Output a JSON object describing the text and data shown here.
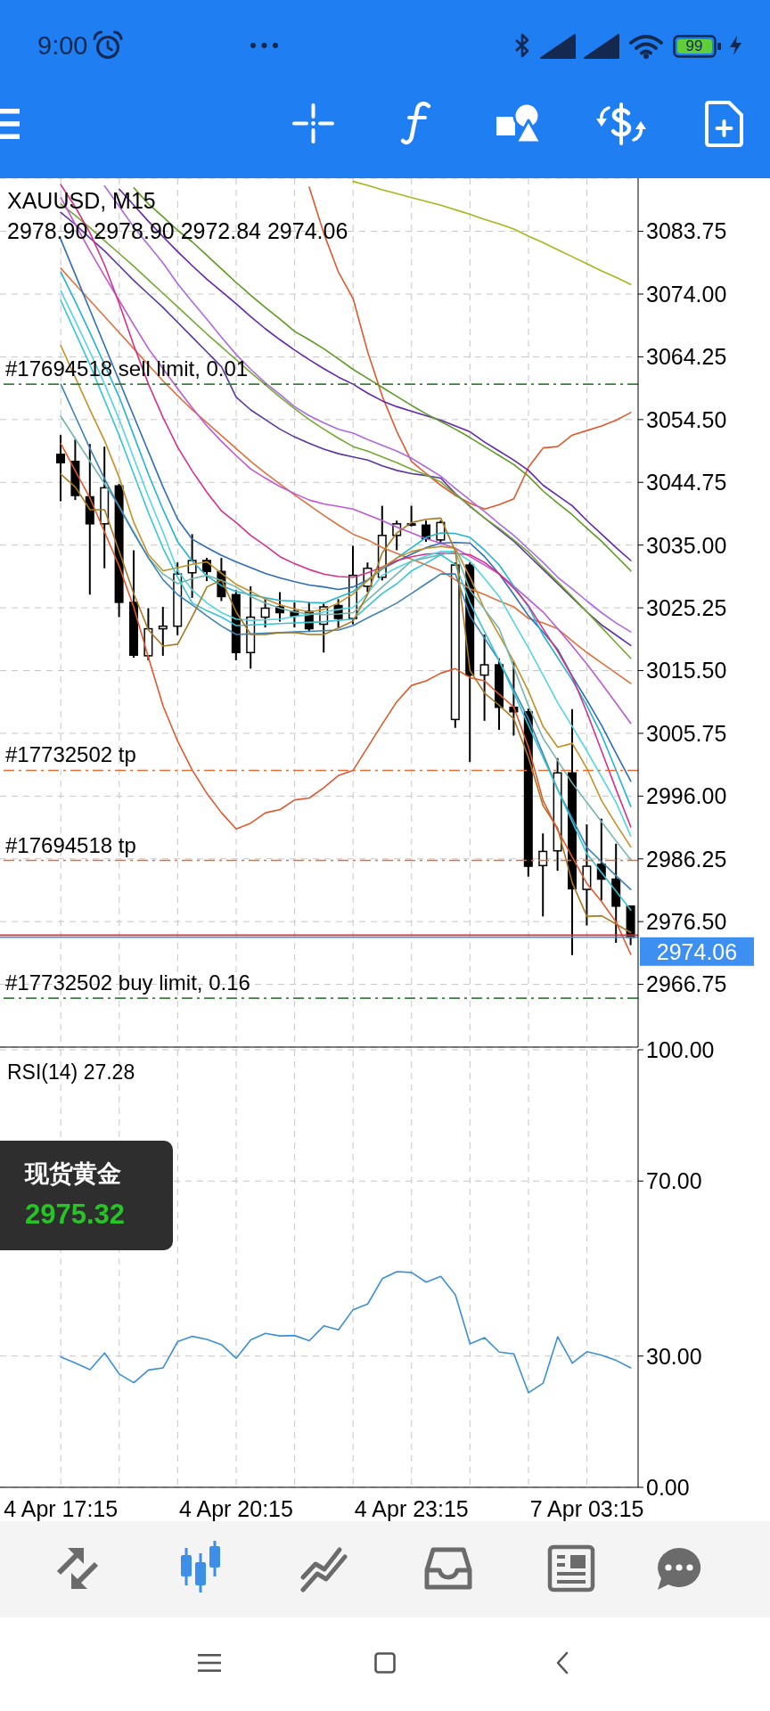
{
  "chart_data": [
    {
      "type": "candlestick",
      "title": "XAUUSD, M15",
      "subtitle": "2978.90 2978.90 2972.84 2974.06",
      "categories": [
        null,
        null,
        null,
        null,
        null,
        null,
        null,
        null,
        null,
        null,
        null,
        null,
        null,
        null,
        null,
        null,
        null,
        null,
        null,
        null,
        null,
        null,
        null,
        null,
        null,
        null,
        null,
        null,
        null,
        null,
        null,
        null,
        null,
        null,
        null,
        null,
        null,
        null,
        null,
        null
      ],
      "ohlc": [
        [
          3049.1,
          3052.1,
          3041.8,
          3047.8
        ],
        [
          3048.0,
          3051.4,
          3042.0,
          3042.7
        ],
        [
          3042.5,
          3050.7,
          3027.3,
          3038.3
        ],
        [
          3038.3,
          3050.3,
          3031.4,
          3043.9
        ],
        [
          3044.2,
          3044.5,
          3023.8,
          3026.1
        ],
        [
          3026.1,
          3034.2,
          3017.5,
          3017.9
        ],
        [
          3017.8,
          3025.2,
          3017.1,
          3022.0
        ],
        [
          3022.0,
          3025.4,
          3017.8,
          3022.4
        ],
        [
          3022.4,
          3032.3,
          3021.0,
          3030.5
        ],
        [
          3030.7,
          3036.7,
          3026.8,
          3032.6
        ],
        [
          3032.6,
          3033.0,
          3029.4,
          3030.9
        ],
        [
          3030.9,
          3033.0,
          3026.3,
          3027.0
        ],
        [
          3027.3,
          3028.0,
          3017.1,
          3018.3
        ],
        [
          3018.3,
          3028.6,
          3015.8,
          3023.8
        ],
        [
          3023.8,
          3026.6,
          3022.2,
          3025.2
        ],
        [
          3025.4,
          3027.7,
          3023.1,
          3024.5
        ],
        [
          3024.7,
          3026.1,
          3022.2,
          3024.0
        ],
        [
          3024.7,
          3026.1,
          3021.5,
          3022.0
        ],
        [
          3022.7,
          3025.9,
          3018.3,
          3025.4
        ],
        [
          3025.6,
          3026.6,
          3022.2,
          3023.6
        ],
        [
          3023.6,
          3034.9,
          3022.7,
          3030.3
        ],
        [
          3028.6,
          3032.3,
          3027.7,
          3031.4
        ],
        [
          3030.0,
          3041.1,
          3029.5,
          3036.5
        ],
        [
          3036.5,
          3038.8,
          3034.2,
          3038.3
        ],
        [
          3038.3,
          3041.1,
          3037.9,
          3038.1
        ],
        [
          3038.1,
          3038.8,
          3035.5,
          3036.0
        ],
        [
          3035.8,
          3038.8,
          3035.4,
          3038.5
        ],
        [
          3007.9,
          3032.3,
          3006.6,
          3031.9
        ],
        [
          3031.9,
          3032.3,
          3001.3,
          3014.8
        ],
        [
          3014.8,
          3021.1,
          3007.7,
          3016.4
        ],
        [
          3016.4,
          3017.4,
          3006.3,
          3009.8
        ],
        [
          3009.8,
          3016.9,
          3005.4,
          3009.1
        ],
        [
          3009.1,
          3009.6,
          2983.5,
          2985.1
        ],
        [
          2985.2,
          2990.2,
          2977.3,
          2987.4
        ],
        [
          2987.5,
          3001.9,
          2984.4,
          2999.6
        ],
        [
          2999.6,
          3009.5,
          2971.3,
          2981.6
        ],
        [
          2981.5,
          2991.6,
          2975.9,
          2985.1
        ],
        [
          2985.4,
          2992.5,
          2979.8,
          2983.1
        ],
        [
          2983.1,
          2988.6,
          2973.2,
          2978.9
        ],
        [
          2978.9,
          2978.9,
          2972.84,
          2974.06
        ]
      ],
      "series": [
        {
          "type": "line",
          "color": "#a9b51c",
          "values": [
            null,
            null,
            null,
            null,
            null,
            null,
            null,
            null,
            null,
            null,
            null,
            null,
            null,
            null,
            null,
            null,
            null,
            null,
            null,
            null,
            3091.5,
            3090.9,
            3090.2,
            3089.6,
            3089.0,
            3088.4,
            3087.8,
            3087.1,
            3086.4,
            3085.6,
            3084.9,
            3084.1,
            3083.0,
            3082.0,
            3080.9,
            3079.8,
            3078.7,
            3077.6,
            3076.6,
            3075.5
          ]
        },
        {
          "type": "line",
          "color": "#e0582c",
          "values": [
            null,
            null,
            null,
            null,
            null,
            null,
            null,
            null,
            null,
            null,
            null,
            null,
            null,
            null,
            null,
            null,
            null,
            3090.6,
            3083.4,
            3077.4,
            3073.3,
            3065.0,
            3058.1,
            3052.6,
            3048.0,
            3046.1,
            3044.3,
            3042.7,
            3041.5,
            3040.6,
            3041.3,
            3042.2,
            3047.1,
            3050.1,
            3050.3,
            3052.1,
            3052.8,
            3053.5,
            3054.4,
            3055.6
          ]
        },
        {
          "type": "line",
          "color": "#6226b0",
          "values": [
            null,
            null,
            null,
            null,
            3090.3,
            3087.8,
            3085.3,
            3082.9,
            3080.6,
            3078.4,
            3076.3,
            3074.4,
            3072.5,
            3070.5,
            3068.6,
            3066.9,
            3065.3,
            3063.8,
            3062.4,
            3061.1,
            3060.0,
            3058.6,
            3057.4,
            3056.5,
            3055.8,
            3055.1,
            3054.4,
            3053.5,
            3052.6,
            3051.0,
            3049.6,
            3048.2,
            3046.6,
            3044.3,
            3042.7,
            3041.1,
            3038.8,
            3036.7,
            3034.6,
            3032.6
          ]
        },
        {
          "type": "line",
          "color": "#5d9a22",
          "values": [
            null,
            null,
            null,
            null,
            null,
            3090.5,
            3088.0,
            3086.0,
            3083.9,
            3082.1,
            3080.0,
            3077.9,
            3075.8,
            3073.8,
            3071.9,
            3070.1,
            3068.2,
            3066.9,
            3065.5,
            3063.9,
            3062.3,
            3060.9,
            3059.5,
            3058.1,
            3056.7,
            3055.4,
            3054.2,
            3053.0,
            3051.7,
            3050.3,
            3048.9,
            3047.5,
            3045.7,
            3043.4,
            3041.5,
            3039.7,
            3037.6,
            3035.6,
            3033.3,
            3031.0
          ]
        },
        {
          "type": "line",
          "color": "#ad68e4",
          "values": [
            null,
            null,
            null,
            3090.8,
            3087.6,
            3084.4,
            3081.6,
            3078.8,
            3075.6,
            3072.8,
            3070.1,
            3067.3,
            3064.6,
            3062.3,
            3060.2,
            3058.4,
            3056.5,
            3055.1,
            3054.0,
            3053.0,
            3052.4,
            3051.4,
            3050.5,
            3049.6,
            3048.5,
            3047.1,
            3045.7,
            3043.8,
            3042.0,
            3040.2,
            3038.3,
            3036.5,
            3034.4,
            3032.3,
            3030.0,
            3028.2,
            3026.3,
            3024.5,
            3022.9,
            3021.5
          ]
        },
        {
          "type": "line",
          "color": "#5b35a6",
          "values": [
            3086.7,
            3084.8,
            3082.7,
            3080.7,
            3078.4,
            3076.1,
            3074.0,
            3071.9,
            3069.6,
            3067.3,
            3065.0,
            3062.7,
            3058.0,
            3056.0,
            3054.5,
            3053.0,
            3051.8,
            3050.8,
            3049.9,
            3049.2,
            3048.7,
            3048.2,
            3047.3,
            3046.6,
            3046.1,
            3045.8,
            3045.4,
            3043.0,
            3041.0,
            3039.2,
            3037.4,
            3035.6,
            3033.4,
            3031.2,
            3029.0,
            3026.8,
            3024.6,
            3022.6,
            3021.0,
            3019.4
          ]
        },
        {
          "type": "line",
          "color": "#74a834",
          "values": [
            3088.0,
            3086.2,
            3084.3,
            3082.3,
            3080.3,
            3078.3,
            3076.2,
            3074.1,
            3072.0,
            3069.9,
            3067.8,
            3065.8,
            3063.8,
            3061.8,
            3059.9,
            3058.0,
            3056.2,
            3054.5,
            3053.0,
            3051.6,
            3050.3,
            3049.6,
            3048.7,
            3047.8,
            3046.8,
            3045.9,
            3044.8,
            3042.9,
            3041.1,
            3039.2,
            3037.6,
            3035.8,
            3033.9,
            3031.5,
            3029.3,
            3027.0,
            3024.6,
            3022.2,
            3019.8,
            3017.4
          ]
        },
        {
          "type": "line",
          "color": "#e0703c",
          "values": [
            3078.0,
            3075.5,
            3073.0,
            3070.5,
            3068.0,
            3065.5,
            3063.0,
            3060.5,
            3058.2,
            3056.0,
            3054.0,
            3052.0,
            3050.0,
            3048.0,
            3046.2,
            3044.5,
            3042.8,
            3041.2,
            3039.6,
            3038.1,
            3036.7,
            3035.8,
            3034.6,
            3033.7,
            3032.8,
            3031.9,
            3031.0,
            3029.6,
            3028.2,
            3027.3,
            3026.3,
            3025.4,
            3023.6,
            3022.9,
            3022.0,
            3020.1,
            3018.3,
            3016.7,
            3015.1,
            3013.5
          ]
        },
        {
          "type": "line",
          "color": "#bd58d6",
          "values": [
            3089.0,
            3084.8,
            3080.7,
            3076.8,
            3073.0,
            3069.2,
            3065.5,
            3062.4,
            3059.3,
            3056.3,
            3053.5,
            3051.1,
            3048.9,
            3046.8,
            3045.4,
            3044.1,
            3043.0,
            3042.0,
            3041.4,
            3041.0,
            3040.6,
            3039.7,
            3038.8,
            3037.8,
            3036.9,
            3036.0,
            3035.3,
            3034.5,
            3033.2,
            3031.9,
            3030.5,
            3028.6,
            3026.6,
            3024.6,
            3022.0,
            3019.3,
            3016.5,
            3013.5,
            3010.4,
            3007.3
          ]
        },
        {
          "type": "line",
          "color": "#2d6cb8",
          "values": [
            3082.5,
            3077.0,
            3071.5,
            3066.0,
            3060.5,
            3055.0,
            3049.5,
            3044.0,
            3039.0,
            3035.9,
            3034.6,
            3033.4,
            3032.4,
            3031.5,
            3030.6,
            3029.9,
            3029.3,
            3028.8,
            3028.5,
            3028.1,
            3028.5,
            3029.6,
            3031.3,
            3032.5,
            3033.6,
            3034.6,
            3035.3,
            3035.4,
            3035.3,
            3033.2,
            3030.5,
            3027.3,
            3024.0,
            3021.5,
            3018.8,
            3014.6,
            3010.9,
            3007.0,
            3002.6,
            2998.3
          ]
        },
        {
          "type": "line",
          "color": "#22b4d2",
          "values": [
            3077.4,
            3072.8,
            3068.0,
            3063.0,
            3058.0,
            3052.0,
            3046.0,
            3040.5,
            3035.5,
            3032.5,
            3030.2,
            3028.7,
            3027.8,
            3027.3,
            3026.8,
            3026.4,
            3026.3,
            3026.1,
            3026.0,
            3026.9,
            3027.8,
            3029.5,
            3031.3,
            3033.0,
            3034.6,
            3036.2,
            3036.9,
            3036.8,
            3036.2,
            3034.2,
            3031.9,
            3028.6,
            3025.4,
            3021.0,
            3017.5,
            3014.0,
            3010.0,
            3005.5,
            3000.0,
            2994.4
          ]
        },
        {
          "type": "line",
          "color": "#d5308a",
          "values": [
            3091.0,
            3087.5,
            3083.5,
            3078.5,
            3072.5,
            3066.0,
            3060.0,
            3054.8,
            3050.2,
            3046.5,
            3043.2,
            3040.3,
            3038.5,
            3036.5,
            3034.9,
            3033.2,
            3032.1,
            3031.2,
            3030.5,
            3030.1,
            3030.0,
            3030.7,
            3031.6,
            3032.6,
            3033.2,
            3033.6,
            3033.7,
            3033.7,
            3033.5,
            3032.3,
            3030.5,
            3028.3,
            3025.6,
            3022.0,
            3018.5,
            3014.5,
            3009.0,
            3003.0,
            2997.0,
            2991.2
          ]
        },
        {
          "type": "line",
          "color": "#52d4e4",
          "values": [
            3074.5,
            3069.8,
            3065.0,
            3060.0,
            3054.5,
            3048.5,
            3042.5,
            3037.0,
            3031.0,
            3028.0,
            3026.0,
            3024.5,
            3023.5,
            3023.3,
            3023.4,
            3023.5,
            3023.9,
            3024.2,
            3024.6,
            3025.0,
            3025.3,
            3027.5,
            3030.3,
            3031.5,
            3032.5,
            3033.3,
            3034.0,
            3034.0,
            3032.5,
            3029.8,
            3027.0,
            3023.0,
            3019.0,
            3014.8,
            3010.5,
            3006.8,
            3003.0,
            2999.0,
            2995.0,
            2989.8
          ]
        },
        {
          "type": "line",
          "color": "#c49026",
          "values": [
            3066.0,
            3061.0,
            3056.0,
            3051.2,
            3045.5,
            3038.5,
            3033.5,
            3031.0,
            3031.5,
            3032.0,
            3032.4,
            3030.6,
            3028.9,
            3027.8,
            3026.6,
            3025.7,
            3025.1,
            3024.6,
            3025.0,
            3026.0,
            3027.4,
            3029.5,
            3031.5,
            3033.0,
            3034.0,
            3034.5,
            3034.8,
            3034.5,
            3030.0,
            3025.0,
            3021.0,
            3016.9,
            3012.3,
            3006.8,
            3003.6,
            3004.2,
            3000.3,
            2995.3,
            2991.6,
            2988.1
          ]
        },
        {
          "type": "line",
          "color": "#72b6ae",
          "values": [
            3055.0,
            3051.5,
            3048.0,
            3044.5,
            3041.0,
            3037.0,
            3033.0,
            3030.5,
            3029.0,
            3029.8,
            3030.3,
            3029.5,
            3028.5,
            3027.0,
            3026.0,
            3025.2,
            3024.6,
            3024.3,
            3024.2,
            3024.3,
            3024.5,
            3026.5,
            3028.5,
            3030.5,
            3032.5,
            3033.0,
            3033.5,
            3034.0,
            3028.0,
            3025.0,
            3022.0,
            3016.0,
            3010.0,
            3005.0,
            3001.5,
            2998.0,
            2995.0,
            2992.0,
            2989.0,
            2986.1
          ]
        },
        {
          "type": "line",
          "color": "#3c82b6",
          "values": [
            3060.0,
            3055.0,
            3050.0,
            3045.3,
            3040.9,
            3036.8,
            3033.0,
            3029.6,
            3027.3,
            3025.7,
            3024.0,
            3022.4,
            3021.1,
            3021.2,
            3021.3,
            3021.4,
            3021.5,
            3021.6,
            3021.7,
            3021.8,
            3022.5,
            3023.7,
            3024.8,
            3026.0,
            3027.5,
            3029.0,
            3030.5,
            3030.5,
            3024.0,
            3020.5,
            3017.0,
            3012.5,
            3008.0,
            3002.5,
            2997.0,
            2992.5,
            2988.0,
            2985.8,
            2983.6,
            2981.5
          ]
        },
        {
          "type": "line",
          "color": "#36c4d6",
          "values": [
            3073.0,
            3068.0,
            3063.0,
            3057.5,
            3052.0,
            3046.0,
            3040.0,
            3034.5,
            3030.0,
            3026.0,
            3024.8,
            3023.8,
            3022.5,
            3022.6,
            3022.7,
            3022.8,
            3022.9,
            3023.0,
            3023.1,
            3023.3,
            3023.5,
            3025.5,
            3027.5,
            3029.0,
            3031.0,
            3032.2,
            3033.5,
            3032.0,
            3026.0,
            3021.5,
            3017.0,
            3012.0,
            3007.0,
            3002.0,
            2997.0,
            2992.0,
            2987.0,
            2984.1,
            2981.2,
            2978.3
          ]
        },
        {
          "type": "line",
          "color": "#a87822",
          "values": [
            3046.0,
            3044.0,
            3040.5,
            3040.5,
            3034.0,
            3027.4,
            3021.8,
            3019.3,
            3019.6,
            3023.9,
            3028.5,
            3029.6,
            3024.6,
            3021.1,
            3021.1,
            3021.4,
            3021.4,
            3021.1,
            3021.1,
            3022.1,
            3023.2,
            3027.4,
            3033.8,
            3036.9,
            3038.5,
            3039.0,
            3039.2,
            3034.0,
            3015.5,
            3012.0,
            3010.1,
            3008.0,
            3002.0,
            2994.5,
            2991.0,
            2982.5,
            2977.3,
            2977.4,
            2976.1,
            2974.8
          ]
        },
        {
          "type": "line",
          "color": "#e0582c",
          "values": [
            3050.8,
            3046.5,
            3042.3,
            3037.0,
            3031.7,
            3025.3,
            3017.5,
            3010.0,
            3004.5,
            3000.0,
            2996.4,
            2993.4,
            2990.9,
            2991.8,
            2993.4,
            2993.9,
            2995.4,
            2995.7,
            2997.3,
            2999.2,
            3000.0,
            3003.6,
            3007.2,
            3010.7,
            3013.2,
            3013.9,
            3015.1,
            3015.8,
            3014.4,
            3013.9,
            3011.8,
            3009.8,
            3003.6,
            2995.3,
            2990.7,
            2986.5,
            2982.4,
            2979.6,
            2976.4,
            2971.4
          ]
        }
      ],
      "ylim": [
        2957.0,
        3092.0
      ],
      "yticks": [
        3083.75,
        {
          "value": 3074,
          "label": "3074.00"
        },
        3064.25,
        {
          "value": 3054.5,
          "label": "3054.50"
        },
        3044.75,
        {
          "value": 3035,
          "label": "3035.00"
        },
        3025.25,
        {
          "value": 3015.5,
          "label": "3015.50"
        },
        3005.75,
        {
          "value": 2996,
          "label": "2996.00"
        },
        2986.25,
        {
          "value": 2976.5,
          "label": "2976.50"
        },
        2966.75
      ],
      "grid": true,
      "tick_labels": "y",
      "marker": "none",
      "ref_lines": [
        {
          "axis": "y",
          "value": 3060.0,
          "label": "#17694518 sell limit, 0.01",
          "color": "#3d7d3d",
          "line_style": "dashed"
        },
        {
          "axis": "y",
          "value": 3000.0,
          "label": "#17732502 tp",
          "color": "#e0703a",
          "line_style": "dashed"
        },
        {
          "axis": "y",
          "value": 2986.0,
          "label": "#17694518 tp",
          "color": "#e0703a",
          "line_style": "dashed"
        },
        {
          "axis": "y",
          "value": 2964.6,
          "label": "#17732502 buy limit, 0.16",
          "color": "#3d7d3d",
          "line_style": "dashed"
        },
        {
          "axis": "y",
          "value": 2974.4,
          "color": "#d6303c",
          "line_style": "solid"
        },
        {
          "axis": "y",
          "value": 2974.06,
          "label": "2974.06",
          "color": "#3d8ff2",
          "line_style": "solid"
        }
      ],
      "annotations": [
        "9:00",
        "99"
      ]
    },
    {
      "type": "line",
      "title": "RSI(14) 27.28",
      "categories": [
        "4 Apr 17:15",
        null,
        null,
        null,
        null,
        null,
        null,
        null,
        null,
        null,
        null,
        null,
        "4 Apr 20:15",
        null,
        null,
        null,
        null,
        null,
        null,
        null,
        null,
        null,
        null,
        null,
        "4 Apr 23:15",
        null,
        null,
        null,
        null,
        null,
        null,
        null,
        null,
        null,
        null,
        null,
        "7 Apr 03:15",
        null,
        null,
        null
      ],
      "series": [
        {
          "color": "#3b8fd6",
          "values": [
            29.8,
            28.4,
            26.9,
            30.7,
            25.9,
            23.9,
            26.8,
            27.3,
            33.3,
            34.5,
            33.8,
            32.6,
            29.5,
            33.7,
            35.2,
            34.6,
            34.7,
            33.5,
            36.9,
            36.0,
            40.6,
            41.9,
            47.7,
            49.3,
            49.1,
            46.9,
            48.2,
            44.0,
            32.8,
            34.2,
            30.9,
            30.5,
            21.6,
            23.8,
            34.4,
            28.4,
            31.0,
            30.2,
            29.0,
            27.3
          ]
        }
      ],
      "ylim": [
        0,
        100
      ],
      "yticks": [
        {
          "value": 0,
          "label": "0.00"
        },
        {
          "value": 30,
          "label": "30.00"
        },
        {
          "value": 70,
          "label": "70.00"
        },
        {
          "value": 100,
          "label": "100.00"
        }
      ],
      "grid": true,
      "marker": "none",
      "annotations": [
        "现货黄金",
        "2975.32"
      ]
    }
  ]
}
